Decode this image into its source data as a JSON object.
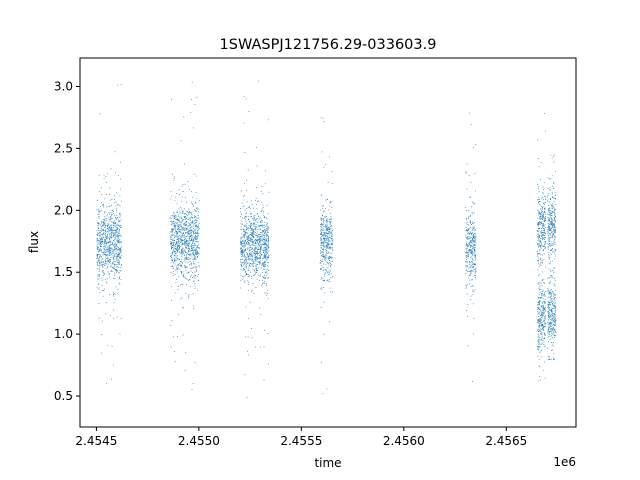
{
  "chart_data": {
    "type": "scatter",
    "title": "1SWASPJ121756.29-033603.9",
    "xlabel": "time",
    "ylabel": "flux",
    "x_offset_label": "1e6",
    "xlim": [
      2454420,
      2456840
    ],
    "ylim": [
      0.25,
      3.23
    ],
    "x_ticks": [
      2454500,
      2455000,
      2455500,
      2456000,
      2456500
    ],
    "x_tick_labels": [
      "2.4545",
      "2.4550",
      "2.4555",
      "2.4560",
      "2.4565"
    ],
    "y_ticks": [
      0.5,
      1.0,
      1.5,
      2.0,
      2.5,
      3.0
    ],
    "y_tick_labels": [
      "0.5",
      "1.0",
      "1.5",
      "2.0",
      "2.5",
      "3.0"
    ],
    "grid": false,
    "series_color": "#1f77b4",
    "clusters": [
      {
        "t_start": 2454500,
        "t_end": 2454620,
        "flux_center": 1.74,
        "flux_low": 0.5,
        "flux_high": 3.05
      },
      {
        "t_start": 2454860,
        "t_end": 2455000,
        "flux_center": 1.76,
        "flux_low": 0.45,
        "flux_high": 3.05
      },
      {
        "t_start": 2455200,
        "t_end": 2455340,
        "flux_center": 1.72,
        "flux_low": 0.38,
        "flux_high": 3.08
      },
      {
        "t_start": 2455590,
        "t_end": 2455650,
        "flux_center": 1.74,
        "flux_low": 0.45,
        "flux_high": 2.9
      },
      {
        "t_start": 2456300,
        "t_end": 2456350,
        "flux_center": 1.7,
        "flux_low": 0.4,
        "flux_high": 2.85
      },
      {
        "t_start": 2456650,
        "t_end": 2456690,
        "flux_center": 1.85,
        "flux_low": 0.38,
        "flux_high": 3.08
      },
      {
        "t_start": 2456650,
        "t_end": 2456690,
        "flux_center": 1.12,
        "flux_low": 0.38,
        "flux_high": 3.08
      },
      {
        "t_start": 2456700,
        "t_end": 2456740,
        "flux_center": 1.9,
        "flux_low": 0.8,
        "flux_high": 2.45
      },
      {
        "t_start": 2456700,
        "t_end": 2456740,
        "flux_center": 1.15,
        "flux_low": 0.8,
        "flux_high": 2.45
      }
    ]
  }
}
